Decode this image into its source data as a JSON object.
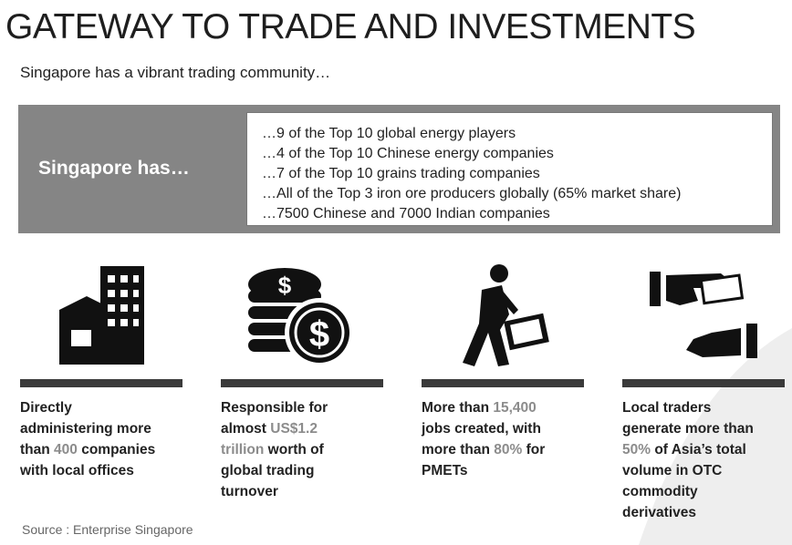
{
  "header": {
    "title": "GATEWAY TO TRADE AND INVESTMENTS",
    "subtitle": "Singapore has a vibrant trading community…"
  },
  "box": {
    "label": "Singapore has…",
    "items": [
      "…9 of the Top 10 global energy players",
      "…4 of the Top 10 Chinese energy companies",
      "…7 of the Top 10 grains trading companies",
      "…All of the Top 3 iron ore producers globally (65% market share)",
      "…7500 Chinese and 7000 Indian companies"
    ]
  },
  "columns": [
    {
      "lines": [
        [
          "Directly"
        ],
        [
          "administering more"
        ],
        [
          "than ",
          "400",
          " companies"
        ],
        [
          "with local offices"
        ]
      ]
    },
    {
      "lines": [
        [
          "Responsible for"
        ],
        [
          "almost ",
          "US$1.2"
        ],
        [
          "",
          "trillion",
          " worth of"
        ],
        [
          "global trading"
        ],
        [
          "turnover"
        ]
      ]
    },
    {
      "lines": [
        [
          "More than ",
          "15,400"
        ],
        [
          "jobs created, with"
        ],
        [
          "more than ",
          "80%",
          " for"
        ],
        [
          "PMETs"
        ]
      ]
    },
    {
      "lines": [
        [
          "Local traders"
        ],
        [
          "generate more than"
        ],
        [
          "",
          "50%",
          " of Asia’s total"
        ],
        [
          "volume in OTC"
        ],
        [
          "commodity"
        ],
        [
          "derivatives"
        ]
      ]
    }
  ],
  "footer": {
    "source": "Source : Enterprise Singapore"
  }
}
